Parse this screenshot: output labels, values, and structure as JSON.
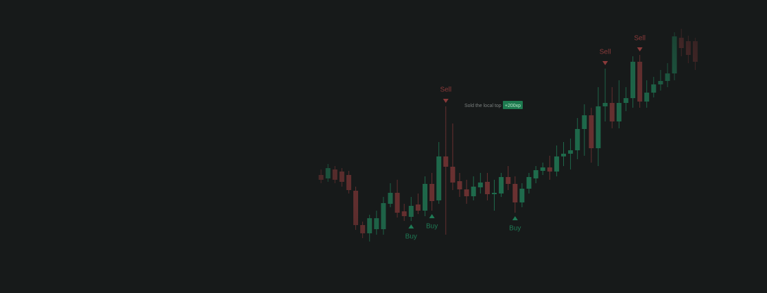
{
  "chart_data": {
    "type": "candlestick",
    "ylim": [
      0,
      427
    ],
    "up_color": "#1f6e4e",
    "down_color": "#6e3232",
    "open": [
      172,
      167,
      180,
      177,
      172,
      149,
      99,
      87,
      93,
      93,
      130,
      146,
      119,
      111,
      129,
      120,
      159,
      135,
      199,
      184,
      163,
      151,
      141,
      154,
      162,
      144,
      145,
      169,
      159,
      132,
      152,
      167,
      178,
      183,
      177,
      199,
      203,
      208,
      239,
      259,
      211,
      272,
      277,
      250,
      277,
      284,
      337,
      279,
      292,
      304,
      309,
      320,
      372,
      367,
      367
    ],
    "close": [
      165,
      182,
      165,
      162,
      150,
      99,
      87,
      109,
      109,
      131,
      146,
      117,
      112,
      127,
      120,
      159,
      134,
      199,
      184,
      161,
      151,
      141,
      155,
      161,
      144,
      146,
      169,
      159,
      132,
      152,
      169,
      179,
      183,
      177,
      199,
      203,
      208,
      239,
      259,
      211,
      272,
      277,
      250,
      277,
      284,
      337,
      279,
      292,
      304,
      309,
      320,
      374,
      357,
      347,
      337
    ],
    "high": [
      180,
      188,
      185,
      182,
      178,
      155,
      104,
      114,
      120,
      140,
      160,
      165,
      130,
      140,
      145,
      170,
      175,
      220,
      272,
      247,
      175,
      165,
      170,
      175,
      175,
      165,
      175,
      185,
      170,
      160,
      175,
      185,
      190,
      200,
      215,
      220,
      225,
      255,
      275,
      270,
      300,
      327,
      300,
      310,
      300,
      345,
      347,
      310,
      315,
      325,
      335,
      380,
      385,
      375,
      372
    ],
    "low": [
      160,
      162,
      160,
      155,
      145,
      92,
      80,
      75,
      85,
      85,
      125,
      110,
      105,
      105,
      115,
      112,
      120,
      130,
      85,
      150,
      140,
      130,
      135,
      145,
      135,
      120,
      140,
      150,
      117,
      125,
      145,
      160,
      172,
      165,
      170,
      185,
      180,
      195,
      200,
      190,
      185,
      250,
      240,
      240,
      265,
      270,
      270,
      270,
      285,
      295,
      300,
      310,
      345,
      335,
      325
    ],
    "signals": [
      null,
      null,
      null,
      null,
      null,
      null,
      null,
      null,
      null,
      null,
      null,
      null,
      null,
      "Buy",
      null,
      null,
      "Buy",
      null,
      "Sell",
      null,
      null,
      null,
      null,
      null,
      null,
      null,
      null,
      null,
      "Buy",
      null,
      null,
      null,
      null,
      null,
      null,
      null,
      null,
      null,
      null,
      null,
      null,
      "Sell",
      null,
      null,
      null,
      null,
      "Sell",
      null,
      null,
      null,
      null,
      null,
      null,
      null,
      null
    ],
    "buy_color": "#1f7a55",
    "sell_color": "#8a3a3a",
    "annotation": {
      "text": "Sold the local top",
      "badge": "+200xp"
    }
  }
}
